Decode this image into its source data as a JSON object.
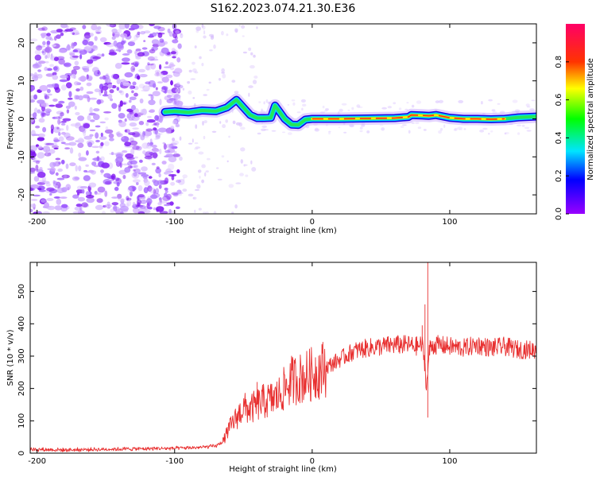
{
  "title": "S162.2023.074.21.30.E36",
  "chart_data": [
    {
      "type": "heatmap",
      "xlabel": "Height of straight line (km)",
      "ylabel": "Frequency (Hz)",
      "xlim": [
        -205,
        163
      ],
      "ylim": [
        -25,
        25
      ],
      "x_ticks": [
        -200,
        -100,
        0,
        100
      ],
      "y_ticks": [
        -20,
        -10,
        0,
        10,
        20
      ],
      "colorbar": {
        "label": "Normalized spectral amplitude",
        "range": [
          0,
          1
        ],
        "ticks": [
          0.0,
          0.2,
          0.4,
          0.6,
          0.8
        ],
        "colormap": "rainbow (violet to red to magenta)"
      },
      "noise_region_x": [
        -205,
        -100
      ],
      "signal_trace": {
        "description": "narrow-band signal near 0 Hz starting at ~-107 km",
        "x": [
          -107,
          -100,
          -90,
          -80,
          -70,
          -62,
          -55,
          -50,
          -45,
          -40,
          -35,
          -30,
          -27,
          -24,
          -20,
          -15,
          -10,
          -5,
          0,
          20,
          40,
          60,
          70,
          72,
          80,
          85,
          90,
          100,
          110,
          120,
          130,
          140,
          150,
          163
        ],
        "y": [
          1.8,
          2.0,
          1.7,
          2.2,
          2.0,
          3.0,
          5.0,
          3.0,
          1.0,
          0.2,
          0.2,
          0.3,
          3.5,
          2.0,
          0.0,
          -1.5,
          -1.6,
          -0.2,
          0.0,
          0.0,
          0.1,
          0.2,
          0.5,
          1.0,
          0.9,
          0.8,
          1.0,
          0.3,
          0.0,
          0.0,
          -0.1,
          0.0,
          0.4,
          0.6
        ]
      },
      "peak_amplitude_x_range": [
        0,
        140
      ]
    },
    {
      "type": "line",
      "xlabel": "Height of straight line (km)",
      "ylabel": "SNR (10 * v/v)",
      "xlim": [
        -205,
        163
      ],
      "ylim": [
        0,
        590
      ],
      "x_ticks": [
        -200,
        -100,
        0,
        100
      ],
      "y_ticks": [
        0,
        100,
        200,
        300,
        400,
        500
      ],
      "series": [
        {
          "color": "#e83030",
          "x": [
            -205,
            -180,
            -150,
            -120,
            -100,
            -80,
            -70,
            -65,
            -60,
            -55,
            -50,
            -45,
            -40,
            -35,
            -30,
            -25,
            -20,
            -15,
            -10,
            -5,
            0,
            10,
            20,
            30,
            40,
            50,
            60,
            70,
            75,
            80,
            82,
            83,
            84,
            85,
            86,
            90,
            100,
            110,
            120,
            130,
            140,
            150,
            163
          ],
          "y": [
            12,
            10,
            12,
            14,
            15,
            18,
            22,
            35,
            80,
            110,
            140,
            135,
            150,
            160,
            165,
            175,
            200,
            225,
            230,
            235,
            245,
            265,
            290,
            315,
            325,
            330,
            335,
            335,
            330,
            335,
            270,
            200,
            250,
            310,
            330,
            335,
            330,
            325,
            335,
            325,
            330,
            320,
            320
          ],
          "spikes": [
            {
              "x": -40,
              "y": 220
            },
            {
              "x": -14,
              "y": 280
            },
            {
              "x": 80,
              "y": 395
            },
            {
              "x": 82,
              "y": 460
            },
            {
              "x": 84,
              "y": 590
            },
            {
              "x": 84,
              "y": 110
            }
          ]
        }
      ]
    }
  ]
}
